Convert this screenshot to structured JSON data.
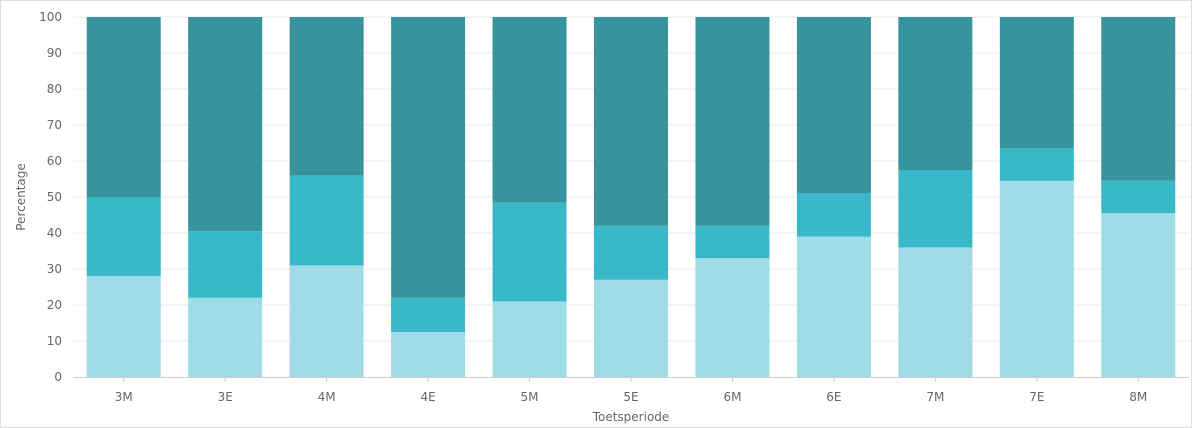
{
  "chart_data": {
    "type": "bar",
    "stacked": true,
    "title": "",
    "xlabel": "Toetsperiode",
    "ylabel": "Percentage",
    "ylim": [
      0,
      100
    ],
    "yticks": [
      0,
      10,
      20,
      30,
      40,
      50,
      60,
      70,
      80,
      90,
      100
    ],
    "grid": true,
    "legend": "none",
    "categories": [
      "3M",
      "3E",
      "4M",
      "4E",
      "5M",
      "5E",
      "6M",
      "6E",
      "7M",
      "7E",
      "8M"
    ],
    "series": [
      {
        "color": "#9fdce5",
        "values": [
          28,
          22,
          31,
          12.5,
          21,
          27,
          33,
          39,
          36,
          54.5,
          45.5
        ]
      },
      {
        "color": "#38b8c9",
        "values": [
          22,
          18.5,
          25,
          9.5,
          27.5,
          15,
          9,
          12,
          21.5,
          9,
          9
        ]
      },
      {
        "color": "#37939d",
        "values": [
          50,
          59.5,
          44,
          78,
          51.5,
          58,
          58,
          49,
          42.5,
          36.5,
          45.5
        ]
      }
    ]
  }
}
